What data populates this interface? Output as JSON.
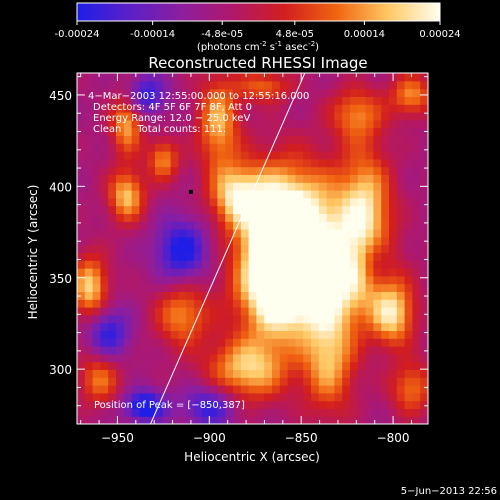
{
  "colorbar": {
    "tick_labels": [
      "-0.00024",
      "-0.00014",
      "-4.8e-05",
      "4.8e-05",
      "0.00014",
      "0.00024"
    ],
    "tick_values": [
      -0.00024,
      -0.00014,
      -4.8e-05,
      4.8e-05,
      0.00014,
      0.00024
    ],
    "range": [
      -0.00024,
      0.00024
    ],
    "units_prefix": "(photons cm",
    "units_exp1": "-2",
    "units_mid": " s",
    "units_exp2": "-1",
    "units_mid2": " asec",
    "units_exp3": "-2",
    "units_suffix": ")",
    "colors": [
      "#1e1ee6",
      "#5a20c8",
      "#8c1ea0",
      "#b0186a",
      "#d21e1e",
      "#f06410",
      "#ffc864",
      "#fffff0"
    ]
  },
  "chart_data": {
    "type": "heatmap",
    "title": "Reconstructed RHESSI Image",
    "xlabel": "Heliocentric X (arcsec)",
    "ylabel": "Heliocentric Y (arcsec)",
    "xlim": [
      -972,
      -781
    ],
    "ylim": [
      270,
      462
    ],
    "x_ticks": [
      -950,
      -900,
      -850,
      -800
    ],
    "y_ticks": [
      300,
      350,
      400,
      450
    ],
    "x_tick_labels": [
      "−950",
      "−900",
      "−850",
      "−800"
    ],
    "y_tick_labels": [
      "300",
      "350",
      "400",
      "450"
    ],
    "annotations": [
      "4−Mar−2003 12:55:00.000 to 12:55:16.000",
      "Detectors: 4F 5F 6F 7F 8F, Att 0",
      "Energy Range: 12.0 − 25.0 keV",
      "Clean     Total counts: 111."
    ],
    "peak_label": "Position of Peak = [−850,387]",
    "peak": [
      -850,
      387
    ],
    "marker_point": [
      -910,
      397
    ],
    "limb_line": [
      [
        -932,
        270
      ],
      [
        -848,
        462
      ]
    ],
    "sources": [
      {
        "x": -850,
        "y": 380,
        "sx": 18,
        "sy": 22,
        "a": 1.0
      },
      {
        "x": -845,
        "y": 345,
        "sx": 25,
        "sy": 18,
        "a": 0.95
      },
      {
        "x": -865,
        "y": 360,
        "sx": 12,
        "sy": 30,
        "a": 0.85
      },
      {
        "x": -815,
        "y": 385,
        "sx": 10,
        "sy": 25,
        "a": 0.8
      },
      {
        "x": -885,
        "y": 395,
        "sx": 10,
        "sy": 12,
        "a": 0.8
      },
      {
        "x": -880,
        "y": 300,
        "sx": 15,
        "sy": 12,
        "a": 0.75
      },
      {
        "x": -835,
        "y": 305,
        "sx": 10,
        "sy": 20,
        "a": 0.7
      },
      {
        "x": -800,
        "y": 330,
        "sx": 8,
        "sy": 12,
        "a": 0.75
      },
      {
        "x": -945,
        "y": 395,
        "sx": 7,
        "sy": 10,
        "a": 0.75
      },
      {
        "x": -945,
        "y": 435,
        "sx": 6,
        "sy": 12,
        "a": 0.7
      },
      {
        "x": -965,
        "y": 345,
        "sx": 7,
        "sy": 12,
        "a": 0.8
      },
      {
        "x": -915,
        "y": 330,
        "sx": 10,
        "sy": 12,
        "a": 0.6
      },
      {
        "x": -895,
        "y": 435,
        "sx": 8,
        "sy": 18,
        "a": 0.7
      },
      {
        "x": -925,
        "y": 415,
        "sx": 6,
        "sy": 8,
        "a": 0.6
      },
      {
        "x": -960,
        "y": 295,
        "sx": 8,
        "sy": 10,
        "a": 0.55
      },
      {
        "x": -820,
        "y": 440,
        "sx": 10,
        "sy": 10,
        "a": 0.55
      },
      {
        "x": -790,
        "y": 450,
        "sx": 8,
        "sy": 8,
        "a": 0.6
      },
      {
        "x": -790,
        "y": 290,
        "sx": 8,
        "sy": 10,
        "a": 0.55
      },
      {
        "x": -870,
        "y": 455,
        "sx": 10,
        "sy": 6,
        "a": 0.5
      },
      {
        "x": -935,
        "y": 280,
        "sx": 8,
        "sy": 6,
        "a": -0.8
      },
      {
        "x": -955,
        "y": 320,
        "sx": 8,
        "sy": 10,
        "a": -0.6
      },
      {
        "x": -915,
        "y": 365,
        "sx": 10,
        "sy": 12,
        "a": -0.7
      },
      {
        "x": -900,
        "y": 280,
        "sx": 10,
        "sy": 8,
        "a": -0.6
      },
      {
        "x": -935,
        "y": 450,
        "sx": 8,
        "sy": 8,
        "a": -0.6
      },
      {
        "x": -810,
        "y": 360,
        "sx": 6,
        "sy": 10,
        "a": -0.4
      }
    ]
  },
  "footer": {
    "date": "5−Jun−2013 22:56"
  }
}
